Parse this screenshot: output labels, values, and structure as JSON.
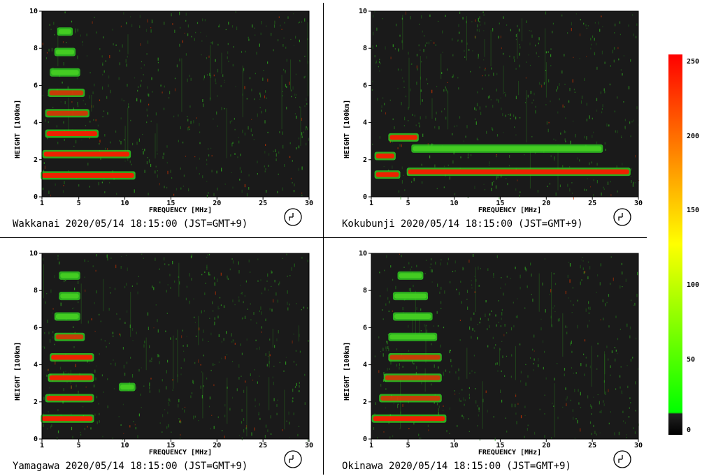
{
  "panels": [
    {
      "station": "Wakkanai",
      "timestamp": "2020/05/14 18:15:00",
      "tz": "(JST=GMT+9)",
      "ylabel": "HEIGHT [100km]",
      "xlabel": "FREQUENCY [MHz]",
      "clock_icon": "clock-icon"
    },
    {
      "station": "Kokubunji",
      "timestamp": "2020/05/14 18:15:00",
      "tz": "(JST=GMT+9)",
      "ylabel": "HEIGHT [100km]",
      "xlabel": "FREQUENCY [MHz]",
      "clock_icon": "clock-icon"
    },
    {
      "station": "Yamagawa",
      "timestamp": "2020/05/14 18:15:00",
      "tz": "(JST=GMT+9)",
      "ylabel": "HEIGHT [100km]",
      "xlabel": "FREQUENCY [MHz]",
      "clock_icon": "clock-icon"
    },
    {
      "station": "Okinawa",
      "timestamp": "2020/05/14 18:15:00",
      "tz": "(JST=GMT+9)",
      "ylabel": "HEIGHT [100km]",
      "xlabel": "FREQUENCY [MHz]",
      "clock_icon": "clock-icon"
    }
  ],
  "colors": {
    "plot_bg": "#1a1a1a",
    "green": "#33dd22",
    "red": "#ee2200",
    "axis": "#000000"
  },
  "colorbar": {
    "ticks": [
      "250",
      "200",
      "150",
      "100",
      "50",
      "0"
    ],
    "values": [
      250,
      200,
      150,
      100,
      50,
      0
    ],
    "range": [
      0,
      255
    ],
    "stops": [
      {
        "v": 0,
        "c": "#000000"
      },
      {
        "v": 14,
        "c": "#222222"
      },
      {
        "v": 15,
        "c": "#00ff00"
      },
      {
        "v": 128,
        "c": "#ffff00"
      },
      {
        "v": 255,
        "c": "#ff0000"
      }
    ]
  },
  "chart_data": [
    {
      "type": "heatmap",
      "title": "Wakkanai 2020/05/14 18:15:00 (JST=GMT+9)",
      "xlabel": "FREQUENCY [MHz]",
      "ylabel": "HEIGHT [100km]",
      "xlim": [
        1,
        30
      ],
      "ylim": [
        0,
        10
      ],
      "xticks": [
        1,
        5,
        10,
        15,
        20,
        25,
        30
      ],
      "yticks": [
        0,
        2,
        4,
        6,
        8,
        10
      ],
      "traces": [
        {
          "f0": 1,
          "f1": 11,
          "h": 1.15,
          "level": "red"
        },
        {
          "f0": 1.2,
          "f1": 10.5,
          "h": 2.3,
          "level": "red"
        },
        {
          "f0": 1.5,
          "f1": 7,
          "h": 3.4,
          "level": "red"
        },
        {
          "f0": 1.5,
          "f1": 6,
          "h": 4.5,
          "level": "mixed"
        },
        {
          "f0": 1.8,
          "f1": 5.5,
          "h": 5.6,
          "level": "mixed"
        },
        {
          "f0": 2,
          "f1": 5,
          "h": 6.7,
          "level": "green"
        },
        {
          "f0": 2.5,
          "f1": 4.5,
          "h": 7.8,
          "level": "green"
        },
        {
          "f0": 2.8,
          "f1": 4.2,
          "h": 8.9,
          "level": "green"
        }
      ]
    },
    {
      "type": "heatmap",
      "title": "Kokubunji 2020/05/14 18:15:00 (JST=GMT+9)",
      "xlabel": "FREQUENCY [MHz]",
      "ylabel": "HEIGHT [100km]",
      "xlim": [
        1,
        30
      ],
      "ylim": [
        0,
        10
      ],
      "xticks": [
        1,
        5,
        10,
        15,
        20,
        25,
        30
      ],
      "yticks": [
        0,
        2,
        4,
        6,
        8,
        10
      ],
      "traces": [
        {
          "f0": 1.5,
          "f1": 4,
          "h": 1.2,
          "level": "red"
        },
        {
          "f0": 5,
          "f1": 29,
          "h": 1.35,
          "level": "red"
        },
        {
          "f0": 1.5,
          "f1": 3.5,
          "h": 2.2,
          "level": "red"
        },
        {
          "f0": 5.5,
          "f1": 26,
          "h": 2.6,
          "level": "green"
        },
        {
          "f0": 3,
          "f1": 6,
          "h": 3.2,
          "level": "red"
        }
      ]
    },
    {
      "type": "heatmap",
      "title": "Yamagawa 2020/05/14 18:15:00 (JST=GMT+9)",
      "xlabel": "FREQUENCY [MHz]",
      "ylabel": "HEIGHT [100km]",
      "xlim": [
        1,
        30
      ],
      "ylim": [
        0,
        10
      ],
      "xticks": [
        1,
        5,
        10,
        15,
        20,
        25,
        30
      ],
      "yticks": [
        0,
        2,
        4,
        6,
        8,
        10
      ],
      "traces": [
        {
          "f0": 1,
          "f1": 6.5,
          "h": 1.1,
          "level": "red"
        },
        {
          "f0": 1.5,
          "f1": 6.5,
          "h": 2.2,
          "level": "red"
        },
        {
          "f0": 1.8,
          "f1": 6.5,
          "h": 3.3,
          "level": "red"
        },
        {
          "f0": 2,
          "f1": 6.5,
          "h": 4.4,
          "level": "red"
        },
        {
          "f0": 2.5,
          "f1": 5.5,
          "h": 5.5,
          "level": "mixed"
        },
        {
          "f0": 2.5,
          "f1": 5,
          "h": 6.6,
          "level": "green"
        },
        {
          "f0": 3,
          "f1": 5,
          "h": 7.7,
          "level": "green"
        },
        {
          "f0": 3,
          "f1": 5,
          "h": 8.8,
          "level": "green"
        },
        {
          "f0": 9.5,
          "f1": 11,
          "h": 2.8,
          "level": "green"
        }
      ]
    },
    {
      "type": "heatmap",
      "title": "Okinawa 2020/05/14 18:15:00 (JST=GMT+9)",
      "xlabel": "FREQUENCY [MHz]",
      "ylabel": "HEIGHT [100km]",
      "xlim": [
        1,
        30
      ],
      "ylim": [
        0,
        10
      ],
      "xticks": [
        1,
        5,
        10,
        15,
        20,
        25,
        30
      ],
      "yticks": [
        0,
        2,
        4,
        6,
        8,
        10
      ],
      "traces": [
        {
          "f0": 1.2,
          "f1": 9,
          "h": 1.1,
          "level": "red"
        },
        {
          "f0": 2,
          "f1": 8.5,
          "h": 2.2,
          "level": "mixed"
        },
        {
          "f0": 2.5,
          "f1": 8.5,
          "h": 3.3,
          "level": "mixed"
        },
        {
          "f0": 3,
          "f1": 8.5,
          "h": 4.4,
          "level": "mixed"
        },
        {
          "f0": 3,
          "f1": 8,
          "h": 5.5,
          "level": "green"
        },
        {
          "f0": 3.5,
          "f1": 7.5,
          "h": 6.6,
          "level": "green"
        },
        {
          "f0": 3.5,
          "f1": 7,
          "h": 7.7,
          "level": "green"
        },
        {
          "f0": 4,
          "f1": 6.5,
          "h": 8.8,
          "level": "green"
        }
      ]
    }
  ]
}
